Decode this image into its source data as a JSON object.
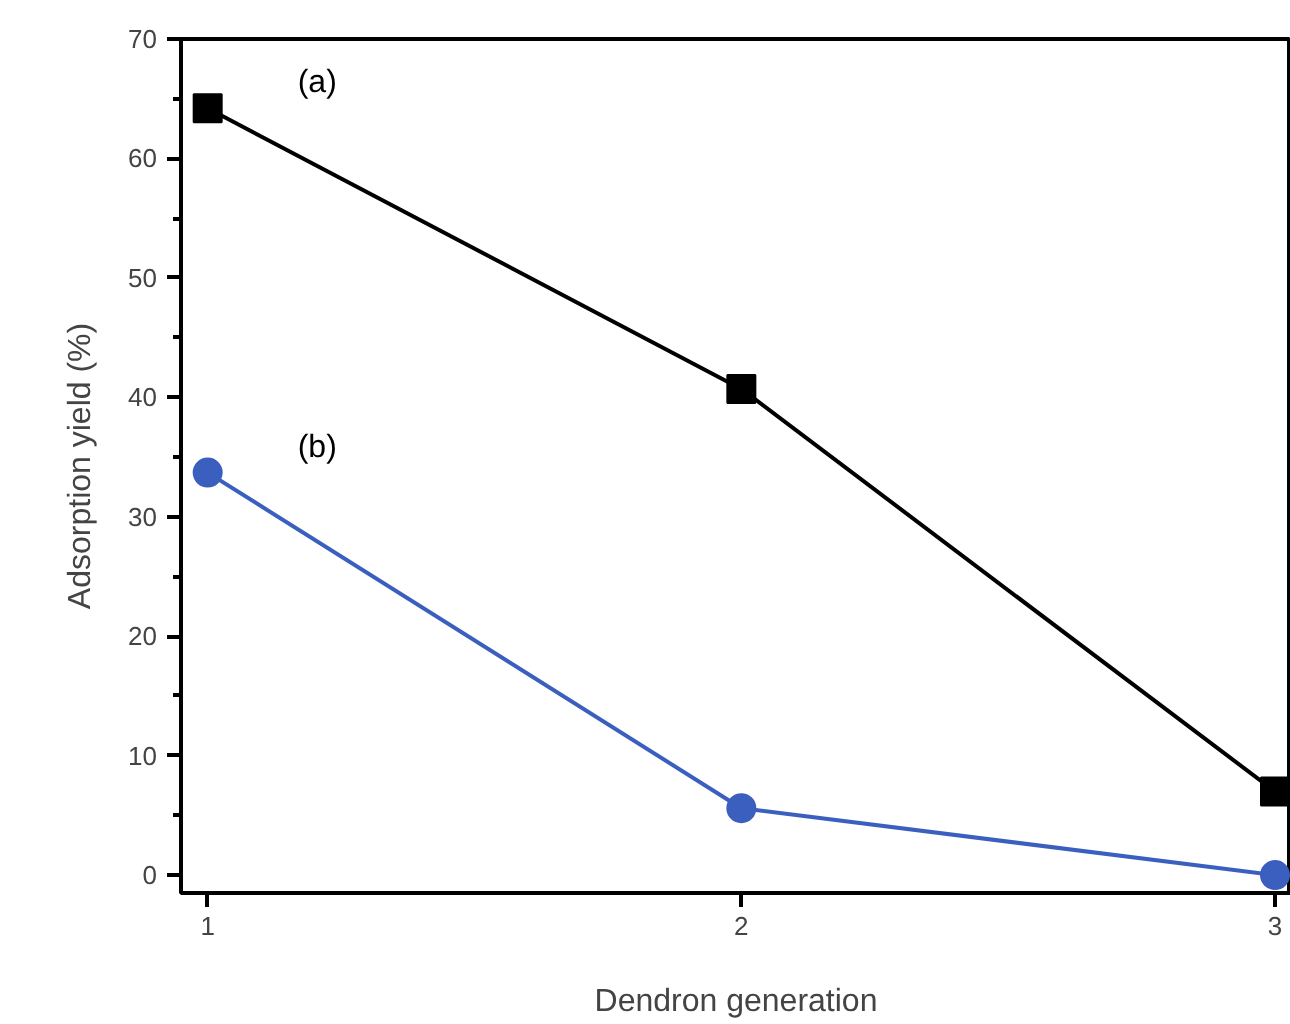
{
  "chart_data": {
    "type": "line",
    "xlabel": "Dendron generation",
    "ylabel": "Adsorption yield (%)",
    "x": [
      1,
      2,
      3
    ],
    "series": [
      {
        "name": "(a)",
        "color": "#000000",
        "values": [
          64.2,
          40.7,
          7.0
        ],
        "marker": "square"
      },
      {
        "name": "(b)",
        "color": "#3a5fbf",
        "values": [
          33.7,
          5.6,
          0
        ],
        "marker": "circle"
      }
    ],
    "xlim": [
      0.95,
      3.03
    ],
    "ylim": [
      -1.5,
      70
    ],
    "xticks": [
      1,
      2,
      3
    ],
    "yticks": [
      0,
      10,
      20,
      30,
      40,
      50,
      60,
      70
    ],
    "grid": false,
    "legend": false,
    "line_style": "solid"
  }
}
